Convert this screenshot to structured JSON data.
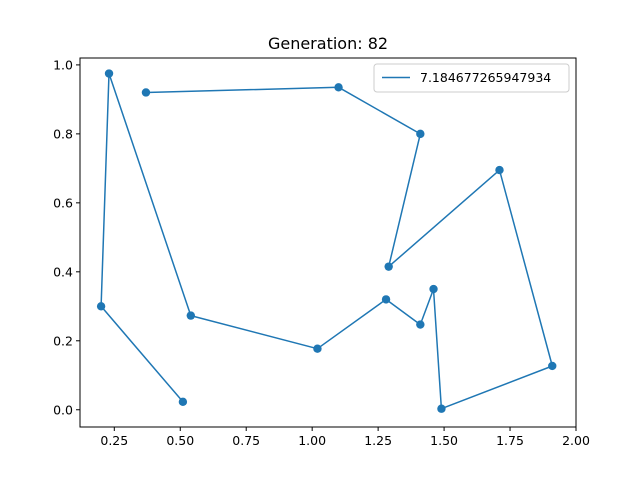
{
  "chart_data": {
    "type": "line",
    "title": "Generation: 82",
    "xlabel": "",
    "ylabel": "",
    "xlim": [
      0.12,
      2.0
    ],
    "ylim": [
      -0.05,
      1.02
    ],
    "xticks": [
      0.25,
      0.5,
      0.75,
      1.0,
      1.25,
      1.5,
      1.75,
      2.0
    ],
    "xtick_labels": [
      "0.25",
      "0.50",
      "0.75",
      "1.00",
      "1.25",
      "1.50",
      "1.75",
      "2.00"
    ],
    "yticks": [
      0.0,
      0.2,
      0.4,
      0.6,
      0.8,
      1.0
    ],
    "ytick_labels": [
      "0.0",
      "0.2",
      "0.4",
      "0.6",
      "0.8",
      "1.0"
    ],
    "grid": false,
    "legend_position": "top-right",
    "series": [
      {
        "name": "7.184677265947934",
        "color": "#1f77b4",
        "marker": "circle",
        "x": [
          0.37,
          1.1,
          1.41,
          1.29,
          1.71,
          1.91,
          1.49,
          1.46,
          1.41,
          1.28,
          1.02,
          0.54,
          0.23,
          0.2,
          0.51
        ],
        "y": [
          0.92,
          0.935,
          0.8,
          0.415,
          0.695,
          0.127,
          0.003,
          0.35,
          0.247,
          0.32,
          0.177,
          0.273,
          0.975,
          0.3,
          0.023
        ]
      }
    ]
  }
}
